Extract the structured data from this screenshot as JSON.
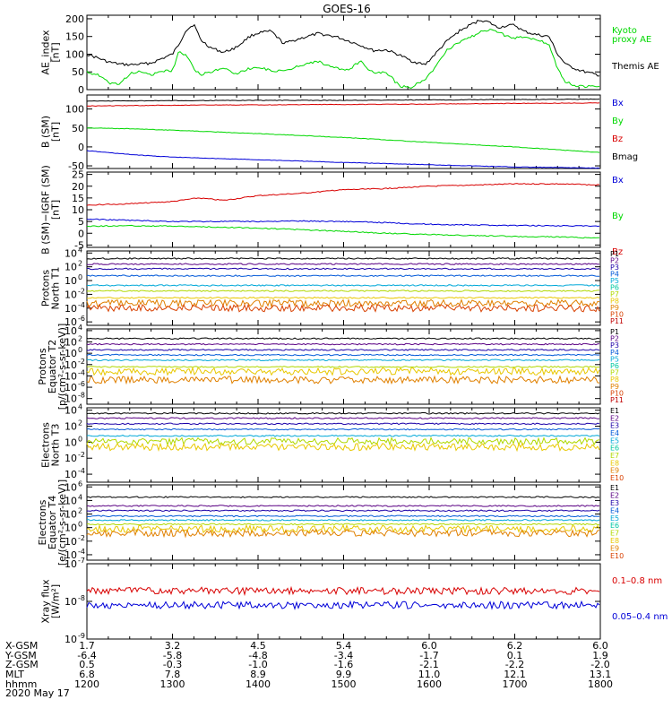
{
  "title": "GOES-16",
  "colors": {
    "black": "#000000",
    "blue": "#0000d8",
    "green": "#00d800",
    "red": "#d80000",
    "p": [
      "#000000",
      "#5a0083",
      "#1c00a8",
      "#0058d8",
      "#00a8d8",
      "#00c8a0",
      "#b0d800",
      "#e8c800",
      "#e08000",
      "#d84000",
      "#c00000"
    ],
    "e": [
      "#000000",
      "#5a0083",
      "#1c00a8",
      "#0058d8",
      "#00a8d8",
      "#00c8a0",
      "#b0d800",
      "#e8c800",
      "#e08000",
      "#d84000"
    ]
  },
  "chart_data": [
    {
      "type": "line",
      "ylabel": [
        "AE_index",
        "[nT]"
      ],
      "ylim": [
        0,
        210
      ],
      "ticks": [
        {
          "v": 0,
          "t": "0"
        },
        {
          "v": 50,
          "t": "50"
        },
        {
          "v": 100,
          "t": "100"
        },
        {
          "v": 150,
          "t": "150"
        },
        {
          "v": 200,
          "t": "200"
        }
      ],
      "series": [
        {
          "name": "Themis AE",
          "color": "black",
          "x": [
            12.0,
            12.12,
            12.25,
            12.38,
            12.5,
            12.62,
            12.75,
            12.88,
            13.0,
            13.08,
            13.15,
            13.25,
            13.33,
            13.45,
            13.6,
            13.75,
            13.9,
            14.0,
            14.15,
            14.3,
            14.5,
            14.7,
            14.9,
            15.05,
            15.2,
            15.35,
            15.5,
            15.65,
            15.8,
            15.95,
            16.05,
            16.2,
            16.35,
            16.5,
            16.6,
            16.7,
            16.8,
            16.9,
            17.0,
            17.1,
            17.25,
            17.4,
            17.5,
            17.6,
            17.75,
            17.9,
            18.0
          ],
          "y": [
            100,
            90,
            78,
            72,
            70,
            72,
            75,
            88,
            100,
            130,
            165,
            185,
            140,
            118,
            105,
            120,
            150,
            160,
            165,
            130,
            145,
            158,
            150,
            138,
            125,
            110,
            112,
            98,
            80,
            70,
            95,
            135,
            165,
            185,
            197,
            190,
            175,
            180,
            182,
            165,
            155,
            150,
            100,
            70,
            55,
            45,
            40
          ]
        },
        {
          "name": "Kyoto proxy AE",
          "color": "green",
          "x": [
            12.0,
            12.12,
            12.25,
            12.38,
            12.5,
            12.62,
            12.75,
            12.88,
            13.0,
            13.08,
            13.17,
            13.25,
            13.33,
            13.45,
            13.6,
            13.75,
            13.9,
            14.0,
            14.15,
            14.3,
            14.5,
            14.7,
            14.9,
            15.05,
            15.2,
            15.35,
            15.5,
            15.65,
            15.8,
            15.95,
            16.05,
            16.2,
            16.35,
            16.5,
            16.6,
            16.7,
            16.8,
            16.9,
            17.0,
            17.1,
            17.25,
            17.4,
            17.5,
            17.6,
            17.75,
            17.9,
            18.0
          ],
          "y": [
            50,
            42,
            20,
            15,
            45,
            50,
            42,
            50,
            55,
            110,
            95,
            60,
            42,
            50,
            60,
            45,
            60,
            62,
            55,
            50,
            70,
            80,
            60,
            55,
            80,
            45,
            50,
            10,
            8,
            30,
            55,
            110,
            135,
            150,
            162,
            170,
            165,
            150,
            145,
            150,
            140,
            130,
            60,
            20,
            10,
            8,
            10
          ]
        }
      ],
      "legend": [
        {
          "text": "Kyoto",
          "color": "green",
          "row": 0
        },
        {
          "text": "proxy AE",
          "color": "green",
          "row": 1
        },
        {
          "text": "Themis AE",
          "color": "black",
          "row": 4
        }
      ]
    },
    {
      "type": "line",
      "ylabel": [
        "B (SM)",
        "[nT]"
      ],
      "ylim": [
        -57,
        137
      ],
      "ticks": [
        {
          "v": -50,
          "t": "-50"
        },
        {
          "v": 0,
          "t": "0"
        },
        {
          "v": 50,
          "t": "50"
        },
        {
          "v": 100,
          "t": "100"
        }
      ],
      "series": [
        {
          "name": "Bx",
          "color": "blue",
          "x": [
            12.0,
            12.5,
            13.0,
            14.0,
            15.0,
            16.0,
            17.0,
            18.0
          ],
          "y": [
            -10,
            -20,
            -27,
            -34,
            -41,
            -47,
            -53,
            -56
          ]
        },
        {
          "name": "By",
          "color": "green",
          "x": [
            12.0,
            12.5,
            13.0,
            14.0,
            15.0,
            16.0,
            17.0,
            18.0
          ],
          "y": [
            50,
            48,
            44,
            35,
            25,
            12,
            0,
            -15
          ]
        },
        {
          "name": "Bz",
          "color": "red",
          "x": [
            12.0,
            12.5,
            13.0,
            14.0,
            15.0,
            16.0,
            17.0,
            18.0
          ],
          "y": [
            108,
            109,
            110,
            111,
            112,
            113,
            115,
            116
          ]
        },
        {
          "name": "Bmag",
          "color": "black",
          "x": [
            12.0,
            13.0,
            14.0,
            15.0,
            16.0,
            17.0,
            18.0
          ],
          "y": [
            121,
            122,
            123,
            123,
            124,
            125,
            126
          ]
        }
      ],
      "legend": [
        {
          "text": "Bx",
          "color": "blue",
          "row": 0
        },
        {
          "text": "By",
          "color": "green",
          "row": 1
        },
        {
          "text": "Bz",
          "color": "red",
          "row": 2
        },
        {
          "text": "Bmag",
          "color": "black",
          "row": 3
        }
      ]
    },
    {
      "type": "line",
      "ylabel": [
        "B (SM)−IGRF (SM)",
        "[nT]"
      ],
      "ylim": [
        -6,
        26
      ],
      "ticks": [
        {
          "v": -5,
          "t": "-5"
        },
        {
          "v": 0,
          "t": "0"
        },
        {
          "v": 5,
          "t": "5"
        },
        {
          "v": 10,
          "t": "10"
        },
        {
          "v": 15,
          "t": "15"
        },
        {
          "v": 20,
          "t": "20"
        },
        {
          "v": 25,
          "t": "25"
        }
      ],
      "series": [
        {
          "name": "Bx",
          "color": "blue",
          "x": [
            12.0,
            12.5,
            13.0,
            13.5,
            14.0,
            14.5,
            15.0,
            15.5,
            16.0,
            16.5,
            17.0,
            17.5,
            18.0
          ],
          "y": [
            6,
            5.5,
            5,
            5,
            5,
            5.2,
            5,
            4.5,
            3.8,
            3.5,
            3.3,
            3.2,
            3
          ]
        },
        {
          "name": "By",
          "color": "green",
          "x": [
            12.0,
            12.5,
            13.0,
            13.5,
            14.0,
            14.5,
            15.0,
            15.5,
            16.0,
            16.5,
            17.0,
            17.5,
            18.0
          ],
          "y": [
            3,
            3.2,
            3,
            2.6,
            2.2,
            1.5,
            0.8,
            0,
            -0.5,
            -1,
            -1.3,
            -1.6,
            -2
          ]
        },
        {
          "name": "Bz",
          "color": "red",
          "x": [
            12.0,
            12.5,
            13.0,
            13.3,
            13.6,
            14.0,
            14.5,
            15.0,
            15.5,
            16.0,
            16.5,
            17.0,
            17.5,
            18.0
          ],
          "y": [
            12,
            12.5,
            13.5,
            15,
            14,
            16,
            17,
            18.5,
            19,
            20,
            20.5,
            21,
            21,
            20.5
          ]
        }
      ],
      "legend": [
        {
          "text": "Bx",
          "color": "blue",
          "row": 0
        },
        {
          "text": "By",
          "color": "green",
          "row": 2
        },
        {
          "text": "Bz",
          "color": "red",
          "row": 4
        }
      ]
    },
    {
      "type": "line",
      "scale": "log",
      "ylabel": [
        "Protons",
        "North T1"
      ],
      "ylim": [
        -6.5,
        4.3
      ],
      "ticks": [
        {
          "v": 4,
          "t": "10",
          "e": "4"
        },
        {
          "v": 2,
          "t": "10",
          "e": "2"
        },
        {
          "v": 0,
          "t": "10",
          "e": "0"
        },
        {
          "v": -2,
          "t": "10",
          "e": "-2"
        },
        {
          "v": -4,
          "t": "10",
          "e": "-4"
        },
        {
          "v": -6,
          "t": "10",
          "e": "-6"
        }
      ],
      "levels": [
        3.2,
        2.4,
        1.7,
        0.7,
        -0.7,
        -1.5,
        -2.5,
        -3.3,
        -4.0
      ],
      "labels": [
        "P1",
        "P2",
        "P3",
        "P4",
        "P5",
        "P6",
        "P7",
        "P8",
        "P9",
        "P10",
        "P11"
      ]
    },
    {
      "type": "line",
      "scale": "log",
      "ylabel": [
        "Protons",
        "Equator T2",
        "[p/(cm²-s-sr-keV)]"
      ],
      "ylim": [
        -9,
        4.3
      ],
      "ticks": [
        {
          "v": 4,
          "t": "10",
          "e": "4"
        },
        {
          "v": 2,
          "t": "10",
          "e": "2"
        },
        {
          "v": 0,
          "t": "10",
          "e": "0"
        },
        {
          "v": -2,
          "t": "10",
          "e": "-2"
        },
        {
          "v": -4,
          "t": "10",
          "e": "-4"
        },
        {
          "v": -6,
          "t": "10",
          "e": "-6"
        },
        {
          "v": -8,
          "t": "10",
          "e": "-8"
        }
      ],
      "levels": [
        2.6,
        1.6,
        0.6,
        -0.3,
        -1.2,
        -2.4,
        -3.2,
        -4.7
      ],
      "labels": [
        "P1",
        "P2",
        "P3",
        "P4",
        "P5",
        "P6",
        "P7",
        "P8",
        "P9",
        "P10",
        "P11"
      ]
    },
    {
      "type": "line",
      "scale": "log",
      "ylabel": [
        "Electrons",
        "North T3"
      ],
      "ylim": [
        -5,
        4.3
      ],
      "ticks": [
        {
          "v": 4,
          "t": "10",
          "e": "4"
        },
        {
          "v": 2,
          "t": "10",
          "e": "2"
        },
        {
          "v": 0,
          "t": "10",
          "e": "0"
        },
        {
          "v": -2,
          "t": "10",
          "e": "-2"
        },
        {
          "v": -4,
          "t": "10",
          "e": "-4"
        }
      ],
      "levels": [
        3.6,
        3.0,
        2.3,
        1.6,
        0.8,
        0.1,
        -0.6
      ],
      "labels": [
        "E1",
        "E2",
        "E3",
        "E4",
        "E5",
        "E6",
        "E7",
        "E8",
        "E9",
        "E10"
      ]
    },
    {
      "type": "line",
      "scale": "log",
      "ylabel": [
        "Electrons",
        "Equator T4",
        "[e/(cm²-s-sr-keV)]"
      ],
      "ylim": [
        -4.8,
        6.3
      ],
      "ticks": [
        {
          "v": 6,
          "t": "10",
          "e": "6"
        },
        {
          "v": 4,
          "t": "10",
          "e": "4"
        },
        {
          "v": 2,
          "t": "10",
          "e": "2"
        },
        {
          "v": 0,
          "t": "10",
          "e": "0"
        },
        {
          "v": -2,
          "t": "10",
          "e": "-2"
        },
        {
          "v": -4,
          "t": "10",
          "e": "-4"
        }
      ],
      "levels": [
        4.5,
        3.2,
        2.5,
        1.7,
        1.1,
        0.5,
        -0.2,
        -0.8
      ],
      "labels": [
        "E1",
        "E2",
        "E3",
        "E4",
        "E5",
        "E6",
        "E7",
        "E8",
        "E9",
        "E10"
      ]
    },
    {
      "type": "line",
      "scale": "log",
      "ylabel": [
        "Xray flux",
        "[W/m²]"
      ],
      "ylim": [
        -9,
        -7
      ],
      "ticks": [
        {
          "v": -7,
          "t": "10",
          "e": "-7"
        },
        {
          "v": -8,
          "t": "10",
          "e": "-8"
        },
        {
          "v": -9,
          "t": "10",
          "e": "-9"
        }
      ],
      "series": [
        {
          "name": "0.1–0.8 nm",
          "color": "red",
          "x": [
            12.0,
            18.0
          ],
          "y": [
            -7.72,
            -7.72
          ]
        },
        {
          "name": "0.05–0.4 nm",
          "color": "blue",
          "x": [
            12.0,
            18.0
          ],
          "y": [
            -8.1,
            -8.1
          ]
        }
      ],
      "legend": [
        {
          "text": "0.1–0.8 nm",
          "color": "red",
          "row": 0
        },
        {
          "text": "0.05–0.4 nm",
          "color": "blue",
          "row": 2
        }
      ]
    }
  ],
  "x_axis": {
    "range": [
      12,
      18
    ],
    "rows": [
      {
        "label": "X-GSM",
        "values": [
          "1.7",
          "3.2",
          "4.5",
          "5.4",
          "6.0",
          "6.2",
          "6.0"
        ]
      },
      {
        "label": "Y-GSM",
        "values": [
          "-6.4",
          "-5.8",
          "-4.8",
          "-3.4",
          "-1.7",
          "0.1",
          "1.9"
        ]
      },
      {
        "label": "Z-GSM",
        "values": [
          "0.5",
          "-0.3",
          "-1.0",
          "-1.6",
          "-2.1",
          "-2.2",
          "-2.0"
        ]
      },
      {
        "label": "MLT",
        "values": [
          "6.8",
          "7.8",
          "8.9",
          "9.9",
          "11.0",
          "12.1",
          "13.1"
        ]
      },
      {
        "label": "hhmm",
        "values": [
          "1200",
          "1300",
          "1400",
          "1500",
          "1600",
          "1700",
          "1800"
        ]
      }
    ],
    "date": "2020 May 17"
  }
}
